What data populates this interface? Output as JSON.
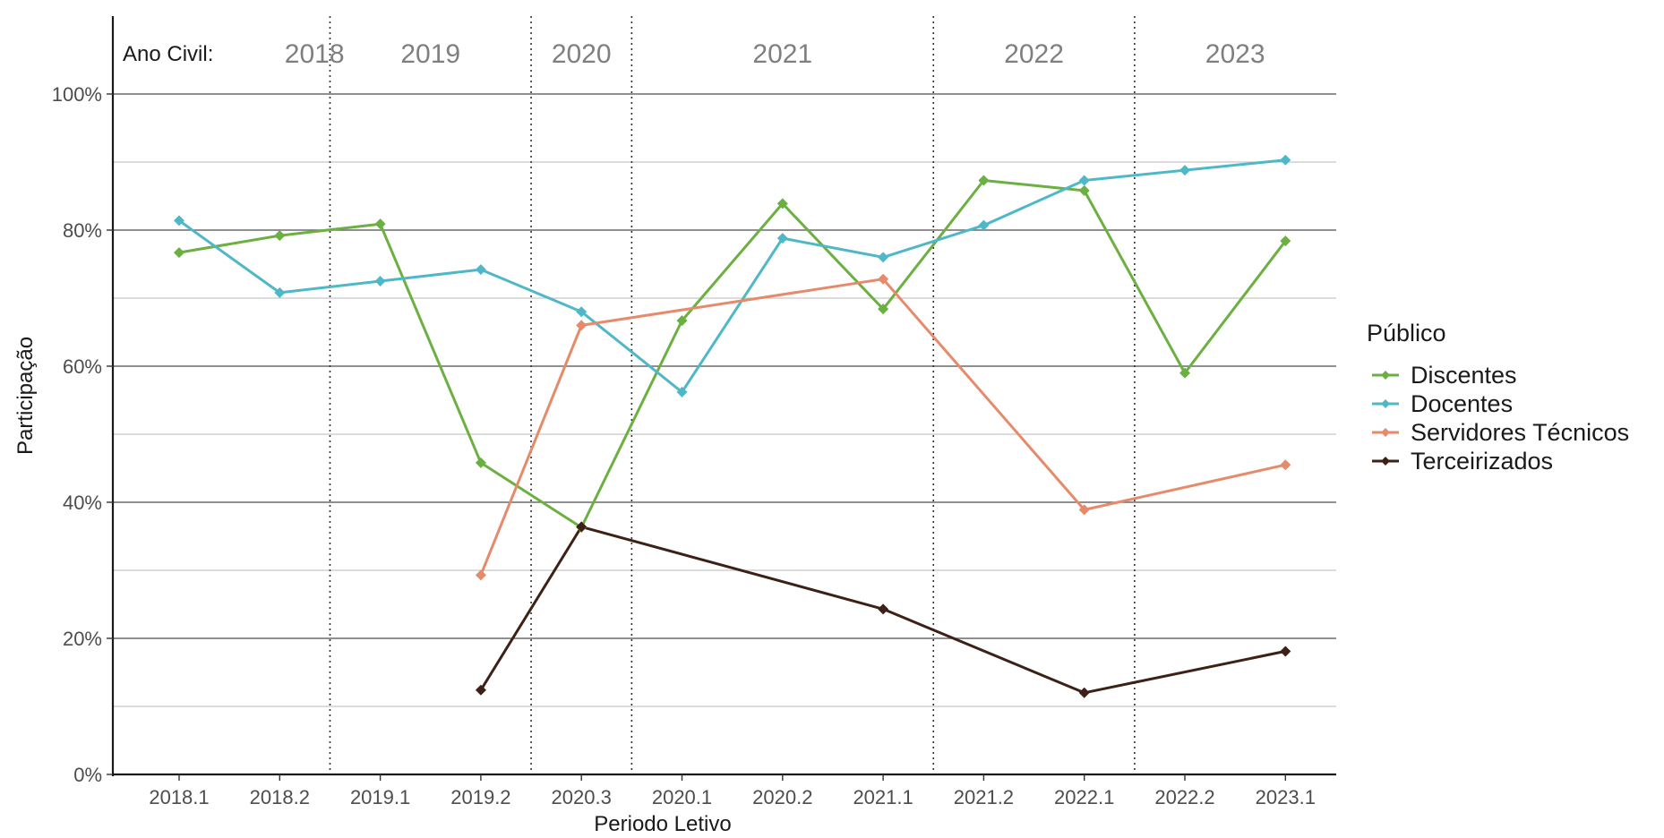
{
  "chart_data": {
    "type": "line",
    "xlabel": "Periodo Letivo",
    "ylabel": "Participação",
    "ylim": [
      0,
      100
    ],
    "y_ticks": [
      0,
      20,
      40,
      60,
      80,
      100
    ],
    "y_tick_labels": [
      "0%",
      "20%",
      "40%",
      "60%",
      "80%",
      "100%"
    ],
    "categories": [
      "2018.1",
      "2018.2",
      "2019.1",
      "2019.2",
      "2020.3",
      "2020.1",
      "2020.2",
      "2021.1",
      "2021.2",
      "2022.1",
      "2022.2",
      "2023.1"
    ],
    "year_band_title": "Ano Civil:",
    "year_bands": [
      {
        "label": "2018",
        "start": 0,
        "end": 1
      },
      {
        "label": "2019",
        "start": 2,
        "end": 3
      },
      {
        "label": "2020",
        "start": 4,
        "end": 4
      },
      {
        "label": "2021",
        "start": 5,
        "end": 7
      },
      {
        "label": "2022",
        "start": 8,
        "end": 9
      },
      {
        "label": "2023",
        "start": 10,
        "end": 11
      }
    ],
    "grid": true,
    "legend_title": "Público",
    "legend_position": "right",
    "series": [
      {
        "name": "Discentes",
        "color": "#6bb041",
        "values": [
          76.7,
          79.2,
          80.9,
          45.8,
          36.3,
          66.7,
          83.9,
          68.4,
          87.3,
          85.8,
          59.0,
          78.4
        ]
      },
      {
        "name": "Docentes",
        "color": "#4fb8c8",
        "values": [
          81.4,
          70.8,
          72.5,
          74.2,
          68.0,
          56.2,
          78.8,
          76.0,
          80.7,
          87.3,
          88.8,
          90.3
        ]
      },
      {
        "name": "Servidores Técnicos",
        "color": "#e58a6a",
        "values": [
          null,
          null,
          null,
          29.3,
          66.0,
          null,
          null,
          72.8,
          null,
          38.9,
          null,
          45.5
        ]
      },
      {
        "name": "Terceirizados",
        "color": "#3d2116",
        "values": [
          null,
          null,
          null,
          12.4,
          36.4,
          null,
          null,
          24.3,
          null,
          12.0,
          null,
          18.1
        ]
      }
    ]
  }
}
